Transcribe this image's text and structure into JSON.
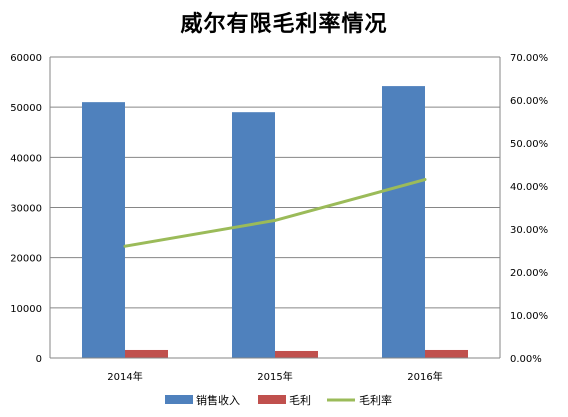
{
  "chart_data": {
    "type": "bar+line",
    "title": "威尔有限毛利率情况",
    "categories": [
      "2014年",
      "2015年",
      "2016年"
    ],
    "series": [
      {
        "name": "销售收入",
        "type": "bar",
        "axis": "left",
        "color": "#4F81BD",
        "values": [
          51000,
          49000,
          54200
        ]
      },
      {
        "name": "毛利",
        "type": "bar",
        "axis": "left",
        "color": "#C0504D",
        "values": [
          1600,
          1400,
          1600
        ]
      },
      {
        "name": "毛利率",
        "type": "line",
        "axis": "right",
        "color": "#9BBB59",
        "values": [
          0.26,
          0.32,
          0.415
        ]
      }
    ],
    "y_left": {
      "min": 0,
      "max": 60000,
      "ticks": [
        "0",
        "10000",
        "20000",
        "30000",
        "40000",
        "50000",
        "60000"
      ]
    },
    "y_right": {
      "min": 0,
      "max": 0.7,
      "ticks": [
        "0.00%",
        "10.00%",
        "20.00%",
        "30.00%",
        "40.00%",
        "50.00%",
        "60.00%",
        "70.00%"
      ]
    },
    "grid": true,
    "legend_position": "bottom"
  }
}
